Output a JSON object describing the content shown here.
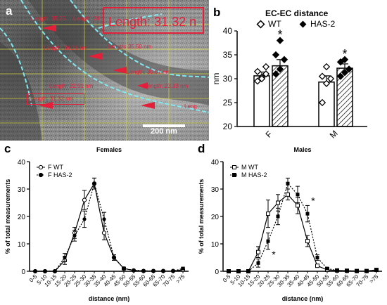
{
  "panel_a": {
    "label": "a",
    "big_label": "Length: 31.32 n",
    "annotations": [
      {
        "text": "Length: 35.25",
        "id": "len1"
      },
      {
        "text": "Length: 24",
        "id": "len2"
      },
      {
        "text": "Length: 36.21 nm",
        "id": "len3"
      },
      {
        "text": "Length: 35.50 nm",
        "id": "len4"
      },
      {
        "text": "Length: 30.07 nm",
        "id": "len5"
      },
      {
        "text": "Length: 22.51 nm",
        "id": "len6"
      },
      {
        "text": "Length: 23.33 nm",
        "id": "len7"
      },
      {
        "text": "Length: 31.32 nm",
        "id": "len8"
      },
      {
        "text": "Leng",
        "id": "len9"
      }
    ],
    "scalebar": "200 nm"
  },
  "chart_data": [
    {
      "id": "b",
      "type": "bar",
      "title": "EC-EC distance",
      "label": "b",
      "categories": [
        "F",
        "M"
      ],
      "ylabel": "nm",
      "ylim": [
        20,
        40
      ],
      "yticks": [
        20,
        25,
        30,
        35,
        40
      ],
      "legend": [
        "WT",
        "HAS-2"
      ],
      "series": [
        {
          "name": "WT",
          "values": [
            30.6,
            29.3
          ],
          "sem": [
            0.8,
            1.3
          ],
          "points": [
            [
              29.5,
              30.3,
              31.0,
              31.5,
              30.0,
              32.5
            ],
            [
              25.0,
              29.0,
              30.0,
              30.5,
              32.5
            ]
          ]
        },
        {
          "name": "HAS-2",
          "values": [
            32.7,
            32.2
          ],
          "sem": [
            1.3,
            0.9
          ],
          "points": [
            [
              31.0,
              32.0,
              34.0,
              35.0,
              38.0
            ],
            [
              30.5,
              31.3,
              32.0,
              33.5,
              34.0
            ]
          ]
        }
      ],
      "significance": [
        "*",
        "*"
      ]
    },
    {
      "id": "c",
      "type": "line",
      "label": "c",
      "title": "Females",
      "xlabel": "distance (nm)",
      "ylabel": "% of total measurements",
      "ylim": [
        0,
        40
      ],
      "yticks": [
        0,
        10,
        20,
        30,
        40
      ],
      "categories": [
        "0-5",
        "5-10",
        "10-15",
        "15-20",
        "20-25",
        "25-30",
        "30-35",
        "35-40",
        "40-45",
        "45-50",
        "50-55",
        "55-60",
        "60-65",
        "65-70",
        "70-75",
        ">75"
      ],
      "series": [
        {
          "name": "F WT",
          "values": [
            0,
            0,
            0,
            4,
            14,
            26,
            32,
            14,
            5,
            1,
            0.3,
            0.1,
            0.1,
            0.1,
            0.1,
            0.5
          ],
          "sem": [
            0,
            0,
            0,
            1.5,
            2,
            3.5,
            2,
            2.5,
            1,
            0.5,
            0.2,
            0.1,
            0.1,
            0.1,
            0.1,
            0.5
          ]
        },
        {
          "name": "F HAS-2",
          "values": [
            0,
            0,
            0,
            5,
            13,
            19,
            32,
            19,
            5,
            1,
            0.4,
            0.2,
            0.1,
            0.1,
            0.1,
            1
          ],
          "sem": [
            0,
            0,
            0,
            1.5,
            2,
            3,
            2,
            2.5,
            1,
            0.5,
            0.2,
            0.1,
            0.1,
            0.1,
            0.1,
            0.5
          ]
        }
      ]
    },
    {
      "id": "d",
      "type": "line",
      "label": "d",
      "title": "Males",
      "xlabel": "distance (nm)",
      "ylabel": "% of total measurements",
      "ylim": [
        0,
        40
      ],
      "yticks": [
        0,
        10,
        20,
        30,
        40
      ],
      "categories": [
        "0-5",
        "5-10",
        "10-15",
        "15-20",
        "20-25",
        "25-30",
        "30-35",
        "35-40",
        "40-45",
        "45-50",
        "50-55",
        "55-60",
        "60-65",
        "65-70",
        "70-75",
        ">75"
      ],
      "series": [
        {
          "name": "M WT",
          "values": [
            0,
            0,
            0,
            7,
            21,
            25,
            28,
            24,
            11,
            2,
            0.5,
            0.3,
            0.2,
            0.1,
            0.1,
            0.5
          ],
          "sem": [
            0,
            0,
            0,
            2,
            5,
            3,
            2,
            3,
            2,
            0.5,
            0.3,
            0.2,
            0.1,
            0.1,
            0.1,
            0.3
          ]
        },
        {
          "name": "M HAS-2",
          "values": [
            0,
            0,
            0,
            3,
            11,
            20,
            32,
            28,
            21,
            5,
            1,
            0.3,
            0.2,
            0.1,
            0.1,
            0.5
          ],
          "sem": [
            0,
            0,
            0,
            1.5,
            3,
            3,
            2,
            3,
            3,
            1,
            0.4,
            0.2,
            0.1,
            0.1,
            0.1,
            0.3
          ]
        }
      ],
      "significance": [
        {
          "category": "20-25",
          "mark": "*"
        },
        {
          "category": "40-45",
          "mark": "*"
        }
      ]
    }
  ]
}
